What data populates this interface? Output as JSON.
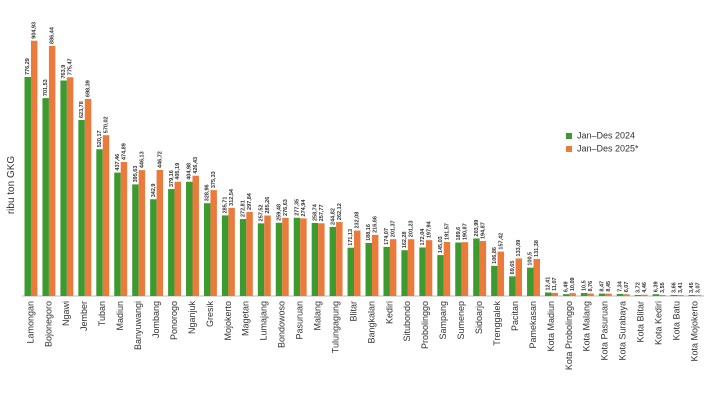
{
  "chart_data": {
    "type": "bar",
    "y_label": "ribu ton GKG",
    "categories": [
      "Lamongan",
      "Bojonegoro",
      "Ngawi",
      "Jember",
      "Tuban",
      "Madiun",
      "Banyuwangi",
      "Jombang",
      "Ponorogo",
      "Nganjuk",
      "Gresik",
      "Mojokerto",
      "Magetan",
      "Lumajang",
      "Bondowoso",
      "Pasuruan",
      "Malang",
      "Tulungagung",
      "Blitar",
      "Bangkalan",
      "Kediri",
      "Situbondo",
      "Probolinggo",
      "Sampang",
      "Sumenep",
      "Sidoarjo",
      "Trenggalek",
      "Pacitan",
      "Pamekasan",
      "Kota Madiun",
      "Kota Probolinggo",
      "Kota Malang",
      "Kota Pasuruan",
      "Kota Surabaya",
      "Kota Blitar",
      "Kota Kediri",
      "Kota Batu",
      "Kota Mojokerto"
    ],
    "series": [
      {
        "name": "Jan–Des 2024",
        "color": "#3d9a2f",
        "values": [
          776.29,
          701.53,
          763.9,
          623.78,
          520.17,
          437.46,
          395.63,
          342.9,
          379.16,
          404.98,
          328.96,
          285.71,
          272.81,
          257.52,
          259.48,
          277.35,
          258.74,
          244.82,
          171.13,
          188.16,
          174.07,
          162.28,
          172.04,
          145.03,
          189.6,
          203.99,
          106.86,
          69.65,
          100.5,
          12.41,
          6.49,
          10.5,
          8.47,
          7.34,
          3.72,
          6.39,
          3.66,
          3.45
        ],
        "value_labels": [
          "776,29",
          "701,53",
          "763,9",
          "623,78",
          "520,17",
          "437,46",
          "395,63",
          "342,9",
          "379,16",
          "404,98",
          "328,96",
          "285,71",
          "272,81",
          "257,52",
          "259,48",
          "277,35",
          "258,74",
          "244,82",
          "171,13",
          "188,16",
          "174,07",
          "162,28",
          "172,04",
          "145,03",
          "189,6",
          "203,99",
          "106,86",
          "69,65",
          "100,5",
          "12,41",
          "6,49",
          "10,5",
          "8,47",
          "7,34",
          "3,72",
          "6,39",
          "3,66",
          "3,45"
        ]
      },
      {
        "name": "Jan–Des 2025*",
        "color": "#ea7b3c",
        "values": [
          904.93,
          886.44,
          775.47,
          698.39,
          570.02,
          474.89,
          446.13,
          446.72,
          405.19,
          426.43,
          375.33,
          312.54,
          297.84,
          285.26,
          276.63,
          274.94,
          257.77,
          262.12,
          232.08,
          216.66,
          201.37,
          201.23,
          197.94,
          191.57,
          190.87,
          194.87,
          157.42,
          133.09,
          131.38,
          11.07,
          10.09,
          8.76,
          8.45,
          6.07,
          4.46,
          3.55,
          3.41,
          3.07
        ],
        "value_labels": [
          "904,93",
          "886,44",
          "775,47",
          "698,39",
          "570,02",
          "474,89",
          "446,13",
          "446,72",
          "405,19",
          "426,43",
          "375,33",
          "312,54",
          "297,84",
          "285,26",
          "276,63",
          "274,94",
          "257,77",
          "262,12",
          "232,08",
          "216,66",
          "201,37",
          "201,23",
          "197,94",
          "191,57",
          "190,87",
          "194,87",
          "157,42",
          "133,09",
          "131,38",
          "11,07",
          "10,09",
          "8,76",
          "8,45",
          "6,07",
          "4,46",
          "3,55",
          "3,41",
          "3,07"
        ]
      }
    ],
    "ylim": [
      0,
      950
    ]
  }
}
